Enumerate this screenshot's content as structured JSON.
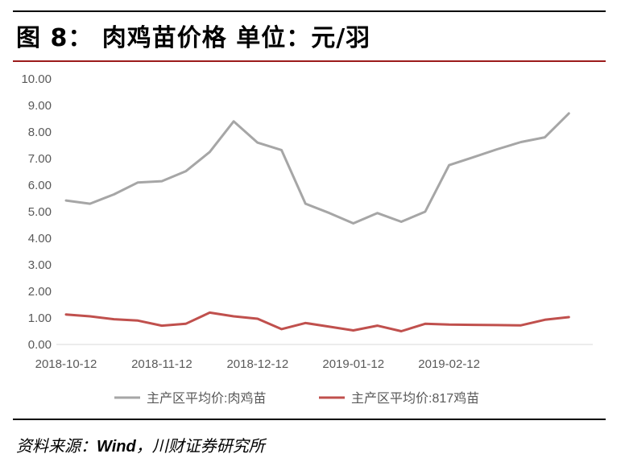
{
  "figure": {
    "title": "图 8：  肉鸡苗价格 单位：元/羽"
  },
  "source": {
    "prefix": "资料来源：",
    "brand": "Wind",
    "suffix": "，川财证券研究所"
  },
  "chart_data": {
    "type": "line",
    "title": "",
    "xlabel": "",
    "ylabel": "",
    "ylim": [
      0,
      10
    ],
    "ytick_labels": [
      "0.00",
      "1.00",
      "2.00",
      "3.00",
      "4.00",
      "5.00",
      "6.00",
      "7.00",
      "8.00",
      "9.00",
      "10.00"
    ],
    "x": [
      "2018-10-12",
      "2018-10-19",
      "2018-10-26",
      "2018-11-02",
      "2018-11-09",
      "2018-11-16",
      "2018-11-23",
      "2018-11-30",
      "2018-12-07",
      "2018-12-14",
      "2018-12-21",
      "2018-12-28",
      "2019-01-04",
      "2019-01-11",
      "2019-01-18",
      "2019-01-25",
      "2019-02-01",
      "2019-02-08",
      "2019-02-15",
      "2019-02-22",
      "2019-03-01",
      "2019-03-08",
      "2019-03-15"
    ],
    "xtick_labels": [
      "2018-10-12",
      "2018-11-12",
      "2018-12-12",
      "2019-01-12",
      "2019-02-12"
    ],
    "xtick_index": [
      0,
      4,
      8,
      12,
      16
    ],
    "grid": false,
    "legend_position": "bottom",
    "series": [
      {
        "name": "主产区平均价:肉鸡苗",
        "color": "#a6a6a6",
        "values": [
          5.42,
          5.3,
          5.65,
          6.1,
          6.15,
          6.52,
          7.25,
          8.4,
          7.6,
          7.32,
          5.3,
          4.95,
          4.56,
          4.95,
          4.62,
          5.0,
          6.75,
          7.05,
          7.35,
          7.62,
          7.8,
          8.7,
          null
        ]
      },
      {
        "name": "主产区平均价:817鸡苗",
        "color": "#c0504d",
        "values": [
          1.13,
          1.06,
          0.95,
          0.9,
          0.71,
          0.78,
          1.2,
          1.06,
          0.97,
          0.58,
          0.81,
          0.67,
          0.53,
          0.71,
          0.5,
          0.78,
          0.75,
          0.74,
          0.73,
          0.72,
          0.93,
          1.03,
          null
        ]
      }
    ]
  }
}
